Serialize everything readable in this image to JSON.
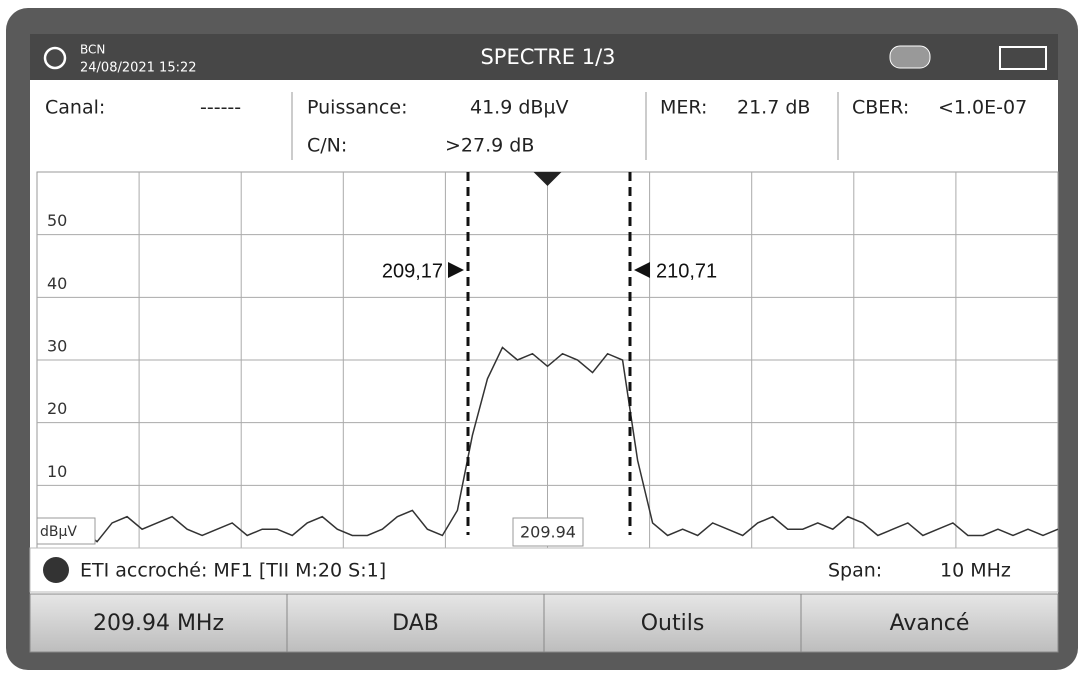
{
  "header": {
    "location": "BCN",
    "datetime": "24/08/2021 15:22",
    "title": "SPECTRE 1/3"
  },
  "info": {
    "canal_label": "Canal:",
    "canal_value": "------",
    "power_label": "Puissance:",
    "power_value": "41.9 dBµV",
    "cn_label": "C/N:",
    "cn_value": ">27.9 dB",
    "mer_label": "MER:",
    "mer_value": "21.7 dB",
    "cber_label": "CBER:",
    "cber_value": "<1.0E-07"
  },
  "spectrum": {
    "unit": "dBµV",
    "yticks": [
      10,
      20,
      30,
      40,
      50
    ],
    "ylim": [
      0,
      60
    ],
    "marker_left": "209,17",
    "marker_right": "210,71",
    "center": "209.94",
    "trace": [
      3,
      2,
      4,
      3,
      1,
      4,
      5,
      3,
      4,
      5,
      3,
      2,
      3,
      4,
      2,
      3,
      3,
      2,
      4,
      5,
      3,
      2,
      2,
      3,
      5,
      6,
      3,
      2,
      6,
      18,
      27,
      32,
      30,
      31,
      29,
      31,
      30,
      28,
      31,
      30,
      14,
      4,
      2,
      3,
      2,
      4,
      3,
      2,
      4,
      5,
      3,
      3,
      4,
      3,
      5,
      4,
      2,
      3,
      4,
      2,
      3,
      4,
      2,
      2,
      3,
      2,
      3,
      2,
      3
    ]
  },
  "status": {
    "lock": "ETI accroché: MF1 [TII M:20 S:1]",
    "span_label": "Span:",
    "span_value": "10 MHz"
  },
  "buttons": [
    "209.94 MHz",
    "DAB",
    "Outils",
    "Avancé"
  ]
}
